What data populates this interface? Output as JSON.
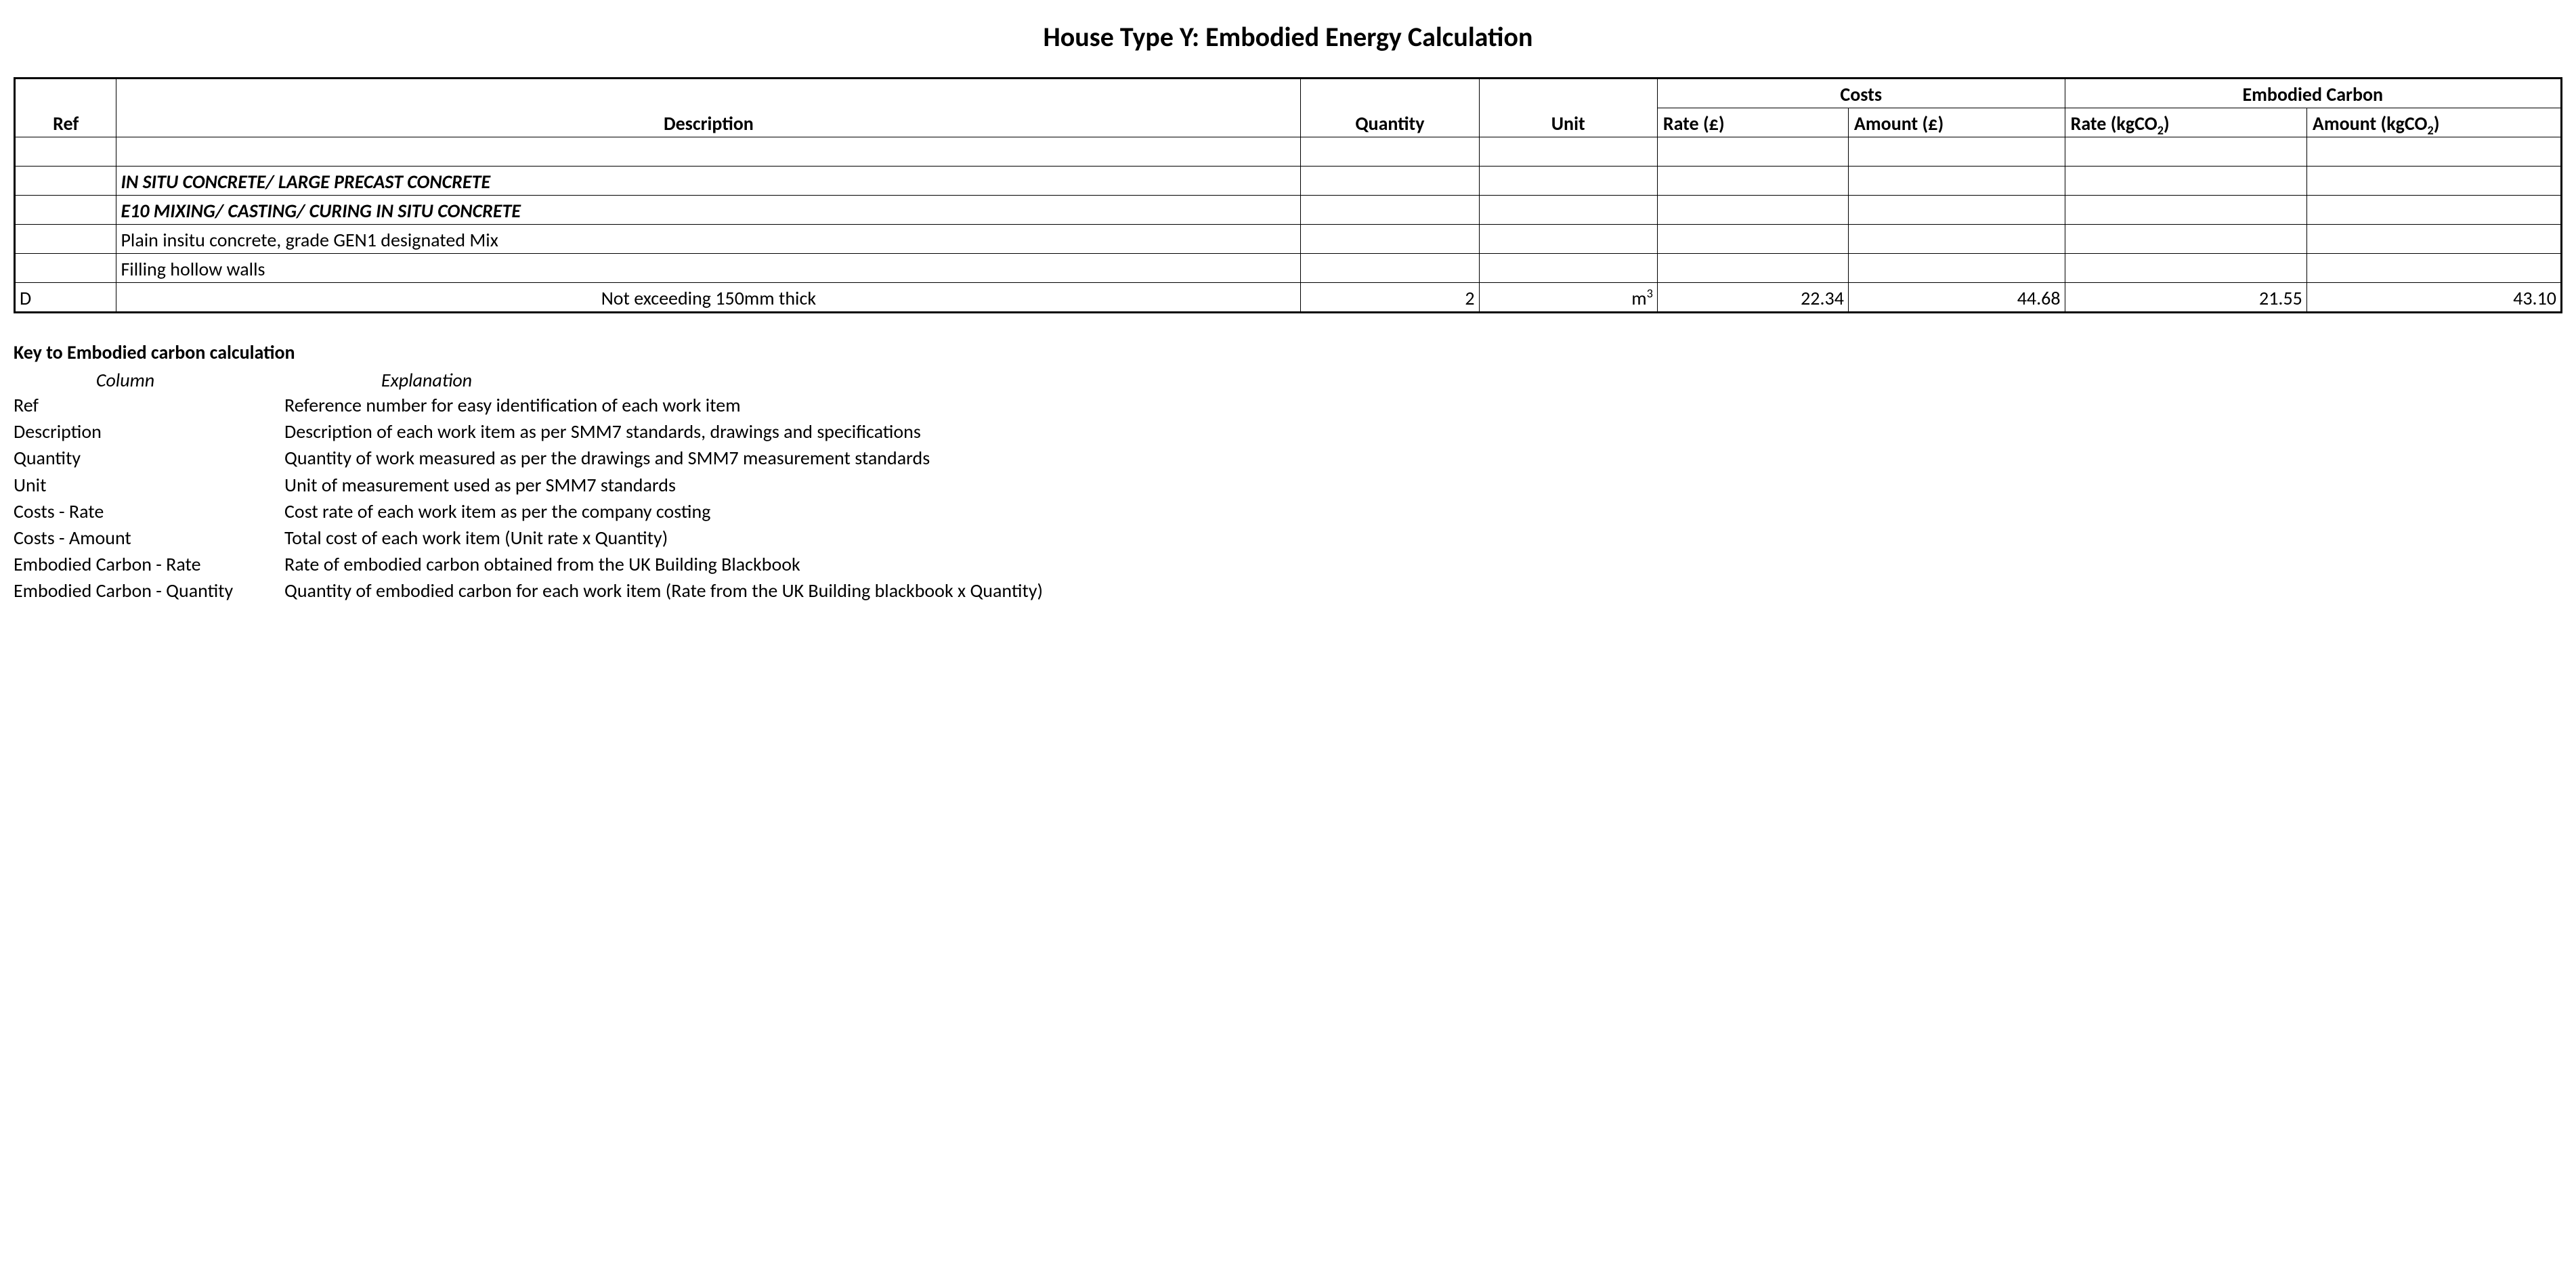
{
  "title": "House Type Y: Embodied Energy Calculation",
  "table": {
    "header": {
      "ref": "Ref",
      "description": "Description",
      "quantity": "Quantity",
      "unit": "Unit",
      "costs_group": "Costs",
      "embodied_group": "Embodied Carbon",
      "rate_cost": "Rate (£)",
      "amount_cost": "Amount (£)",
      "rate_ec": "Rate (kgCO",
      "rate_ec_sub": "2",
      "rate_ec_after": ")",
      "amount_ec": "Amount (kgCO",
      "amount_ec_sub": "2",
      "amount_ec_after": ")"
    },
    "rows": [
      {
        "ref": "",
        "desc": "",
        "style": "",
        "q": "",
        "u": "",
        "cr": "",
        "ca": "",
        "er": "",
        "ea": ""
      },
      {
        "ref": "",
        "desc": "IN SITU CONCRETE/ LARGE PRECAST CONCRETE",
        "style": "bold-italic",
        "q": "",
        "u": "",
        "cr": "",
        "ca": "",
        "er": "",
        "ea": ""
      },
      {
        "ref": "",
        "desc": "E10 MIXING/ CASTING/ CURING IN SITU CONCRETE",
        "style": "bold-italic",
        "q": "",
        "u": "",
        "cr": "",
        "ca": "",
        "er": "",
        "ea": ""
      },
      {
        "ref": "",
        "desc": "Plain insitu concrete, grade GEN1 designated Mix",
        "style": "",
        "q": "",
        "u": "",
        "cr": "",
        "ca": "",
        "er": "",
        "ea": ""
      },
      {
        "ref": "",
        "desc": "Filling hollow walls",
        "style": "",
        "q": "",
        "u": "",
        "cr": "",
        "ca": "",
        "er": "",
        "ea": ""
      },
      {
        "ref": "D",
        "desc": "Not exceeding 150mm thick",
        "style": "desc-center",
        "q": "2",
        "u": "m",
        "u_sup": "3",
        "cr": "22.34",
        "ca": "44.68",
        "er": "21.55",
        "ea": "43.10"
      }
    ]
  },
  "key": {
    "title": "Key to Embodied carbon calculation",
    "col1_hdr": "Column",
    "col2_hdr": "Explanation",
    "rows": [
      {
        "c": "Ref",
        "e": "Reference number for easy identification of each work item"
      },
      {
        "c": "Description",
        "e": "Description of each work item as per SMM7 standards, drawings and specifications"
      },
      {
        "c": "Quantity",
        "e": "Quantity of work measured as per the drawings and SMM7 measurement standards"
      },
      {
        "c": "Unit",
        "e": "Unit of measurement used as per SMM7 standards"
      },
      {
        "c": "Costs - Rate",
        "e": "Cost rate of each work item as per the company costing"
      },
      {
        "c": "Costs - Amount",
        "e": "Total cost of each work item (Unit rate x Quantity)"
      },
      {
        "c": "Embodied Carbon - Rate",
        "e": "Rate of embodied carbon obtained from the UK Building Blackbook"
      },
      {
        "c": "Embodied Carbon - Quantity",
        "e": "Quantity of embodied carbon for each work item (Rate from the UK Building blackbook x Quantity)"
      }
    ]
  }
}
